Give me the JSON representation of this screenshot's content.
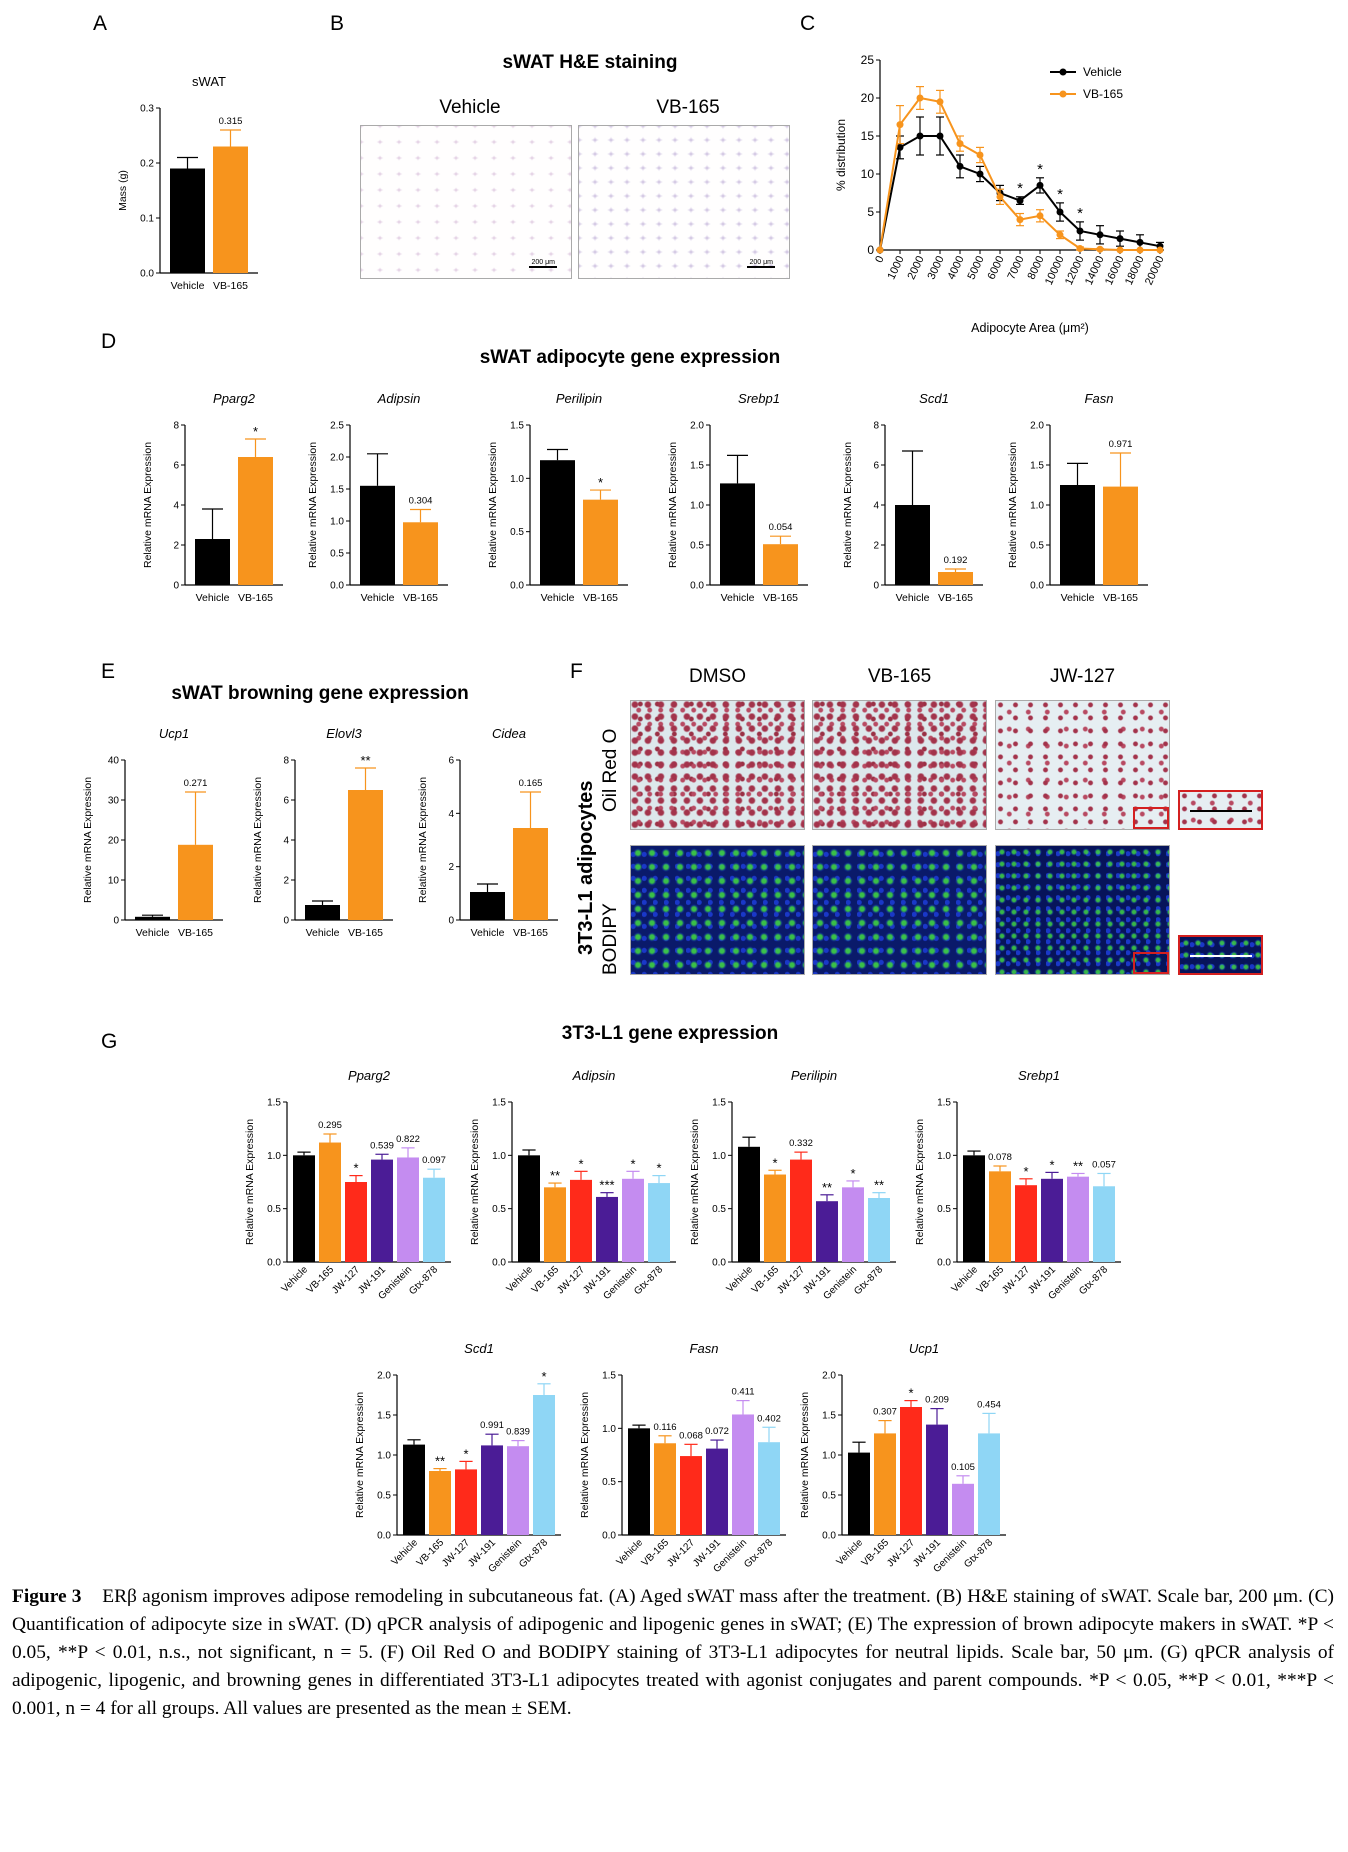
{
  "colors": {
    "vehicle": "#000000",
    "vb165": "#F7941D",
    "jw127": "#FF2A1A",
    "jw191": "#4B1C96",
    "genistein": "#C48CF0",
    "gtx878": "#8FD6F5"
  },
  "panels": {
    "A": "A",
    "B": "B",
    "C": "C",
    "D": "D",
    "E": "E",
    "F": "F",
    "G": "G"
  },
  "panelB": {
    "title": "sWAT H&E staining",
    "left_label": "Vehicle",
    "right_label": "VB-165",
    "scalebar": "200 μm"
  },
  "panelD_title": "sWAT adipocyte gene expression",
  "panelE_title": "sWAT browning gene expression",
  "panelF": {
    "col_labels": [
      "DMSO",
      "VB-165",
      "JW-127"
    ],
    "row_labels": [
      "Oil Red O",
      "BODIPY"
    ],
    "side_label": "3T3-L1 adipocytes"
  },
  "panelG_title": "3T3-L1 gene expression",
  "caption": {
    "figure_label": "Figure 3",
    "text": "ERβ agonism improves adipose remodeling in subcutaneous fat. (A) Aged sWAT mass after the treatment. (B) H&E staining of sWAT. Scale bar, 200 μm. (C) Quantification of adipocyte size in sWAT. (D) qPCR analysis of adipogenic and lipogenic genes in sWAT; (E) The expression of brown adipocyte makers in sWAT. *P < 0.05, **P < 0.01, n.s., not significant, n = 5. (F) Oil Red O and BODIPY staining of 3T3-L1 adipocytes for neutral lipids. Scale bar, 50 μm. (G) qPCR analysis of adipogenic, lipogenic, and browning genes in differentiated 3T3-L1 adipocytes treated with agonist conjugates and parent compounds. *P < 0.05, **P < 0.01, ***P < 0.001, n = 4 for all groups. All values are presented as the mean ± SEM."
  },
  "chart_data": [
    {
      "id": "A",
      "type": "bar",
      "title": "sWAT",
      "title_italic": false,
      "ylabel": "Mass (g)",
      "ylim": [
        0,
        0.3
      ],
      "yticks": [
        "0.0",
        "0.1",
        "0.2",
        "0.3"
      ],
      "categories": [
        "Vehicle",
        "VB-165"
      ],
      "rotate": false,
      "values": [
        0.19,
        0.23
      ],
      "errors": [
        0.02,
        0.03
      ],
      "colors": [
        "#000000",
        "#F7941D"
      ],
      "annotations": [
        "",
        "0.315"
      ]
    },
    {
      "id": "C",
      "type": "line",
      "ylabel": "% distribution",
      "xlabel": "Adipocyte Area (μm²)",
      "ylim": [
        0,
        25
      ],
      "yticks": [
        "0",
        "5",
        "10",
        "15",
        "20",
        "25"
      ],
      "x": [
        "0",
        "1000",
        "2000",
        "3000",
        "4000",
        "5000",
        "6000",
        "7000",
        "8000",
        "10000",
        "12000",
        "14000",
        "16000",
        "18000",
        "20000"
      ],
      "series": [
        {
          "name": "Vehicle",
          "color": "#000000",
          "values": [
            0,
            13.5,
            15,
            15,
            11,
            10,
            7.5,
            6.5,
            8.5,
            5,
            2.5,
            2,
            1.5,
            1,
            0.5
          ],
          "errors": [
            0,
            1.5,
            2.5,
            2.5,
            1.5,
            1,
            1,
            0.5,
            1,
            1.2,
            1.2,
            1.2,
            1,
            1,
            0.5
          ]
        },
        {
          "name": "VB-165",
          "color": "#F7941D",
          "values": [
            0,
            16.5,
            20,
            19.5,
            14,
            12.5,
            7,
            4,
            4.5,
            2,
            0.2,
            0.1,
            0,
            0,
            0
          ],
          "errors": [
            0,
            2.5,
            1.5,
            1.5,
            1,
            1,
            1,
            0.8,
            0.8,
            0.5,
            0.2,
            0.1,
            0,
            0,
            0
          ]
        }
      ],
      "annotations": [
        {
          "x": "7000",
          "text": "*"
        },
        {
          "x": "8000",
          "text": "*"
        },
        {
          "x": "10000",
          "text": "*"
        },
        {
          "x": "12000",
          "text": "*"
        }
      ],
      "legend": "top-right"
    },
    {
      "id": "D1",
      "type": "bar",
      "title": "Pparg2",
      "title_italic": true,
      "ylabel": "Relative mRNA Expression",
      "ylim": [
        0,
        8
      ],
      "yticks": [
        "0",
        "2",
        "4",
        "6",
        "8"
      ],
      "categories": [
        "Vehicle",
        "VB-165"
      ],
      "rotate": false,
      "values": [
        2.3,
        6.4
      ],
      "errors": [
        1.5,
        0.9
      ],
      "colors": [
        "#000000",
        "#F7941D"
      ],
      "annotations": [
        "",
        "*"
      ]
    },
    {
      "id": "D2",
      "type": "bar",
      "title": "Adipsin",
      "title_italic": true,
      "ylabel": "Relative mRNA Expression",
      "ylim": [
        0,
        2.5
      ],
      "yticks": [
        "0.0",
        "0.5",
        "1.0",
        "1.5",
        "2.0",
        "2.5"
      ],
      "categories": [
        "Vehicle",
        "VB-165"
      ],
      "rotate": false,
      "values": [
        1.55,
        0.98
      ],
      "errors": [
        0.5,
        0.2
      ],
      "colors": [
        "#000000",
        "#F7941D"
      ],
      "annotations": [
        "",
        "0.304"
      ]
    },
    {
      "id": "D3",
      "type": "bar",
      "title": "Perilipin",
      "title_italic": true,
      "ylabel": "Relative mRNA Expression",
      "ylim": [
        0,
        1.5
      ],
      "yticks": [
        "0.0",
        "0.5",
        "1.0",
        "1.5"
      ],
      "categories": [
        "Vehicle",
        "VB-165"
      ],
      "rotate": false,
      "values": [
        1.17,
        0.8
      ],
      "errors": [
        0.1,
        0.09
      ],
      "colors": [
        "#000000",
        "#F7941D"
      ],
      "annotations": [
        "",
        "*"
      ]
    },
    {
      "id": "D4",
      "type": "bar",
      "title": "Srebp1",
      "title_italic": true,
      "ylabel": "Relative mRNA Expression",
      "ylim": [
        0,
        2.0
      ],
      "yticks": [
        "0.0",
        "0.5",
        "1.0",
        "1.5",
        "2.0"
      ],
      "categories": [
        "Vehicle",
        "VB-165"
      ],
      "rotate": false,
      "values": [
        1.27,
        0.51
      ],
      "errors": [
        0.35,
        0.1
      ],
      "colors": [
        "#000000",
        "#F7941D"
      ],
      "annotations": [
        "",
        "0.054"
      ]
    },
    {
      "id": "D5",
      "type": "bar",
      "title": "Scd1",
      "title_italic": true,
      "ylabel": "Relative mRNA Expression",
      "ylim": [
        0,
        8
      ],
      "yticks": [
        "0",
        "2",
        "4",
        "6",
        "8"
      ],
      "categories": [
        "Vehicle",
        "VB-165"
      ],
      "rotate": false,
      "values": [
        4.0,
        0.65
      ],
      "errors": [
        2.7,
        0.15
      ],
      "colors": [
        "#000000",
        "#F7941D"
      ],
      "annotations": [
        "",
        "0.192"
      ]
    },
    {
      "id": "D6",
      "type": "bar",
      "title": "Fasn",
      "title_italic": true,
      "ylabel": "Relative mRNA Expression",
      "ylim": [
        0,
        2.0
      ],
      "yticks": [
        "0.0",
        "0.5",
        "1.0",
        "1.5",
        "2.0"
      ],
      "categories": [
        "Vehicle",
        "VB-165"
      ],
      "rotate": false,
      "values": [
        1.25,
        1.23
      ],
      "errors": [
        0.27,
        0.42
      ],
      "colors": [
        "#000000",
        "#F7941D"
      ],
      "annotations": [
        "",
        "0.971"
      ]
    },
    {
      "id": "E1",
      "type": "bar",
      "title": "Ucp1",
      "title_italic": true,
      "ylabel": "Relative mRNA Expression",
      "ylim": [
        0,
        40
      ],
      "yticks": [
        "0",
        "10",
        "20",
        "30",
        "40"
      ],
      "categories": [
        "Vehicle",
        "VB-165"
      ],
      "rotate": false,
      "values": [
        0.8,
        18.8
      ],
      "errors": [
        0.4,
        13.2
      ],
      "colors": [
        "#000000",
        "#F7941D"
      ],
      "annotations": [
        "",
        "0.271"
      ]
    },
    {
      "id": "E2",
      "type": "bar",
      "title": "Elovl3",
      "title_italic": true,
      "ylabel": "Relative mRNA Expression",
      "ylim": [
        0,
        8
      ],
      "yticks": [
        "0",
        "2",
        "4",
        "6",
        "8"
      ],
      "categories": [
        "Vehicle",
        "VB-165"
      ],
      "rotate": false,
      "values": [
        0.75,
        6.5
      ],
      "errors": [
        0.2,
        1.1
      ],
      "colors": [
        "#000000",
        "#F7941D"
      ],
      "annotations": [
        "",
        "**"
      ]
    },
    {
      "id": "E3",
      "type": "bar",
      "title": "Cidea",
      "title_italic": true,
      "ylabel": "Relative mRNA Expression",
      "ylim": [
        0,
        6
      ],
      "yticks": [
        "0",
        "2",
        "4",
        "6"
      ],
      "categories": [
        "Vehicle",
        "VB-165"
      ],
      "rotate": false,
      "values": [
        1.05,
        3.45
      ],
      "errors": [
        0.3,
        1.35
      ],
      "colors": [
        "#000000",
        "#F7941D"
      ],
      "annotations": [
        "",
        "0.165"
      ]
    },
    {
      "id": "G1",
      "type": "bar",
      "title": "Pparg2",
      "title_italic": true,
      "ylabel": "Relative mRNA Expression",
      "ylim": [
        0,
        1.5
      ],
      "yticks": [
        "0.0",
        "0.5",
        "1.0",
        "1.5"
      ],
      "categories": [
        "Vehicle",
        "VB-165",
        "JW-127",
        "JW-191",
        "Genistein",
        "Gtx-878"
      ],
      "rotate": true,
      "values": [
        1.0,
        1.12,
        0.75,
        0.96,
        0.98,
        0.79
      ],
      "errors": [
        0.03,
        0.08,
        0.06,
        0.05,
        0.09,
        0.08
      ],
      "colors": [
        "#000000",
        "#F7941D",
        "#FF2A1A",
        "#4B1C96",
        "#C48CF0",
        "#8FD6F5"
      ],
      "annotations": [
        "",
        "0.295",
        "*",
        "0.539",
        "0.822",
        "0.097"
      ]
    },
    {
      "id": "G2",
      "type": "bar",
      "title": "Adipsin",
      "title_italic": true,
      "ylabel": "Relative mRNA Expression",
      "ylim": [
        0,
        1.5
      ],
      "yticks": [
        "0.0",
        "0.5",
        "1.0",
        "1.5"
      ],
      "categories": [
        "Vehicle",
        "VB-165",
        "JW-127",
        "JW-191",
        "Genistein",
        "Gtx-878"
      ],
      "rotate": true,
      "values": [
        1.0,
        0.7,
        0.77,
        0.61,
        0.78,
        0.74
      ],
      "errors": [
        0.05,
        0.04,
        0.08,
        0.04,
        0.07,
        0.07
      ],
      "colors": [
        "#000000",
        "#F7941D",
        "#FF2A1A",
        "#4B1C96",
        "#C48CF0",
        "#8FD6F5"
      ],
      "annotations": [
        "",
        "**",
        "*",
        "***",
        "*",
        "*"
      ]
    },
    {
      "id": "G3",
      "type": "bar",
      "title": "Perilipin",
      "title_italic": true,
      "ylabel": "Relative mRNA Expression",
      "ylim": [
        0,
        1.5
      ],
      "yticks": [
        "0.0",
        "0.5",
        "1.0",
        "1.5"
      ],
      "categories": [
        "Vehicle",
        "VB-165",
        "JW-127",
        "JW-191",
        "Genistein",
        "Gtx-878"
      ],
      "rotate": true,
      "values": [
        1.08,
        0.82,
        0.96,
        0.57,
        0.7,
        0.6
      ],
      "errors": [
        0.09,
        0.04,
        0.07,
        0.06,
        0.06,
        0.05
      ],
      "colors": [
        "#000000",
        "#F7941D",
        "#FF2A1A",
        "#4B1C96",
        "#C48CF0",
        "#8FD6F5"
      ],
      "annotations": [
        "",
        "*",
        "0.332",
        "**",
        "*",
        "**"
      ]
    },
    {
      "id": "G4",
      "type": "bar",
      "title": "Srebp1",
      "title_italic": true,
      "ylabel": "Relative mRNA Expression",
      "ylim": [
        0,
        1.5
      ],
      "yticks": [
        "0.0",
        "0.5",
        "1.0",
        "1.5"
      ],
      "categories": [
        "Vehicle",
        "VB-165",
        "JW-127",
        "JW-191",
        "Genistein",
        "Gtx-878"
      ],
      "rotate": true,
      "values": [
        1.0,
        0.85,
        0.72,
        0.78,
        0.8,
        0.71
      ],
      "errors": [
        0.04,
        0.05,
        0.06,
        0.06,
        0.03,
        0.12
      ],
      "colors": [
        "#000000",
        "#F7941D",
        "#FF2A1A",
        "#4B1C96",
        "#C48CF0",
        "#8FD6F5"
      ],
      "annotations": [
        "",
        "0.078",
        "*",
        "*",
        "**",
        "0.057"
      ]
    },
    {
      "id": "G5",
      "type": "bar",
      "title": "Scd1",
      "title_italic": true,
      "ylabel": "Relative mRNA Expression",
      "ylim": [
        0,
        2.0
      ],
      "yticks": [
        "0.0",
        "0.5",
        "1.0",
        "1.5",
        "2.0"
      ],
      "categories": [
        "Vehicle",
        "VB-165",
        "JW-127",
        "JW-191",
        "Genistein",
        "Gtx-878"
      ],
      "rotate": true,
      "values": [
        1.13,
        0.8,
        0.82,
        1.12,
        1.11,
        1.75
      ],
      "errors": [
        0.06,
        0.03,
        0.1,
        0.14,
        0.07,
        0.14
      ],
      "colors": [
        "#000000",
        "#F7941D",
        "#FF2A1A",
        "#4B1C96",
        "#C48CF0",
        "#8FD6F5"
      ],
      "annotations": [
        "",
        "**",
        "*",
        "0.991",
        "0.839",
        "*"
      ]
    },
    {
      "id": "G6",
      "type": "bar",
      "title": "Fasn",
      "title_italic": true,
      "ylabel": "Relative mRNA Expression",
      "ylim": [
        0,
        1.5
      ],
      "yticks": [
        "0.0",
        "0.5",
        "1.0",
        "1.5"
      ],
      "categories": [
        "Vehicle",
        "VB-165",
        "JW-127",
        "JW-191",
        "Genistein",
        "Gtx-878"
      ],
      "rotate": true,
      "values": [
        1.0,
        0.86,
        0.74,
        0.81,
        1.13,
        0.87
      ],
      "errors": [
        0.03,
        0.07,
        0.11,
        0.08,
        0.13,
        0.14
      ],
      "colors": [
        "#000000",
        "#F7941D",
        "#FF2A1A",
        "#4B1C96",
        "#C48CF0",
        "#8FD6F5"
      ],
      "annotations": [
        "",
        "0.116",
        "0.068",
        "0.072",
        "0.411",
        "0.402"
      ]
    },
    {
      "id": "G7",
      "type": "bar",
      "title": "Ucp1",
      "title_italic": true,
      "ylabel": "Relative mRNA Expression",
      "ylim": [
        0,
        2.0
      ],
      "yticks": [
        "0.0",
        "0.5",
        "1.0",
        "1.5",
        "2.0"
      ],
      "categories": [
        "Vehicle",
        "VB-165",
        "JW-127",
        "JW-191",
        "Genistein",
        "Gtx-878"
      ],
      "rotate": true,
      "values": [
        1.03,
        1.27,
        1.6,
        1.38,
        0.64,
        1.27
      ],
      "errors": [
        0.13,
        0.16,
        0.08,
        0.2,
        0.1,
        0.25
      ],
      "colors": [
        "#000000",
        "#F7941D",
        "#FF2A1A",
        "#4B1C96",
        "#C48CF0",
        "#8FD6F5"
      ],
      "annotations": [
        "",
        "0.307",
        "*",
        "0.209",
        "0.105",
        "0.454"
      ]
    }
  ]
}
